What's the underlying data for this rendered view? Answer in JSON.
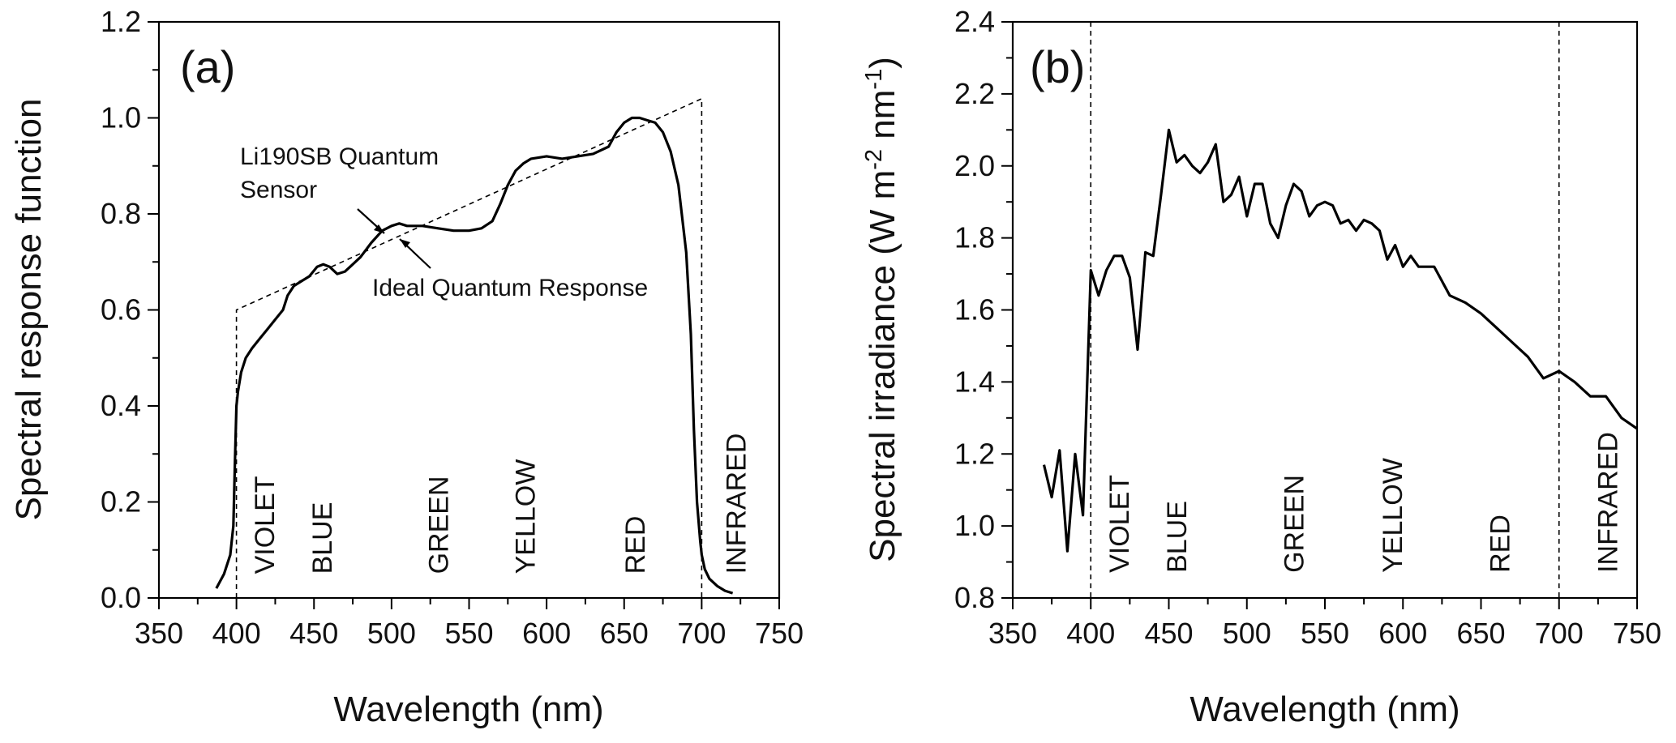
{
  "chart_data": [
    {
      "type": "line",
      "panel_label": "(a)",
      "xlabel": "Wavelength (nm)",
      "ylabel": "Spectral response function",
      "xlim": [
        350,
        750
      ],
      "ylim": [
        0.0,
        1.2
      ],
      "xticks": [
        "350",
        "400",
        "450",
        "500",
        "550",
        "600",
        "650",
        "700",
        "750"
      ],
      "yticks": [
        "0.0",
        "0.2",
        "0.4",
        "0.6",
        "0.8",
        "1.0",
        "1.2"
      ],
      "band_labels": [
        {
          "text": "VIOLET",
          "x": 418,
          "y": 0.05
        },
        {
          "text": "BLUE",
          "x": 455,
          "y": 0.05
        },
        {
          "text": "GREEN",
          "x": 530,
          "y": 0.05
        },
        {
          "text": "YELLOW",
          "x": 586,
          "y": 0.05
        },
        {
          "text": "RED",
          "x": 657,
          "y": 0.05
        },
        {
          "text": "INFRARED",
          "x": 722,
          "y": 0.05
        }
      ],
      "series": [
        {
          "name": "Li190SB Quantum Sensor",
          "x": [
            387,
            392,
            396,
            398,
            399,
            400,
            401,
            403,
            406,
            410,
            415,
            420,
            425,
            430,
            433,
            437,
            442,
            447,
            452,
            456,
            460,
            465,
            470,
            475,
            480,
            487,
            494,
            500,
            505,
            510,
            520,
            530,
            540,
            550,
            558,
            565,
            570,
            575,
            580,
            585,
            590,
            600,
            610,
            620,
            630,
            640,
            645,
            650,
            655,
            660,
            665,
            670,
            675,
            680,
            685,
            690,
            693,
            695,
            697,
            699,
            700,
            702,
            705,
            710,
            715,
            720
          ],
          "y": [
            0.02,
            0.05,
            0.09,
            0.15,
            0.28,
            0.4,
            0.43,
            0.47,
            0.5,
            0.52,
            0.54,
            0.56,
            0.58,
            0.6,
            0.63,
            0.65,
            0.66,
            0.67,
            0.69,
            0.695,
            0.69,
            0.675,
            0.68,
            0.695,
            0.71,
            0.74,
            0.765,
            0.775,
            0.78,
            0.775,
            0.775,
            0.77,
            0.765,
            0.765,
            0.77,
            0.785,
            0.82,
            0.86,
            0.89,
            0.905,
            0.915,
            0.92,
            0.915,
            0.92,
            0.925,
            0.94,
            0.97,
            0.99,
            1.0,
            1.0,
            0.995,
            0.99,
            0.97,
            0.93,
            0.86,
            0.72,
            0.55,
            0.35,
            0.2,
            0.12,
            0.09,
            0.06,
            0.04,
            0.025,
            0.015,
            0.01
          ]
        },
        {
          "name": "Ideal Quantum Response",
          "style": "dashed",
          "x": [
            400,
            400,
            700,
            700
          ],
          "y": [
            0.0,
            0.6,
            1.04,
            0.0
          ]
        }
      ],
      "annotations": [
        {
          "text_lines": [
            "Li190SB Quantum",
            "Sensor"
          ],
          "arrow_to": {
            "x": 497,
            "y": 0.765
          }
        },
        {
          "text_lines": [
            "Ideal Quantum Response"
          ],
          "arrow_to": {
            "x": 503,
            "y": 0.755
          }
        }
      ]
    },
    {
      "type": "line",
      "panel_label": "(b)",
      "xlabel": "Wavelength (nm)",
      "ylabel_parts": [
        "Spectral irradiance (W m",
        "-2",
        " nm",
        "-1",
        ")"
      ],
      "xlim": [
        350,
        750
      ],
      "ylim": [
        0.8,
        2.4
      ],
      "xticks": [
        "350",
        "400",
        "450",
        "500",
        "550",
        "600",
        "650",
        "700",
        "750"
      ],
      "yticks": [
        "0.8",
        "1.0",
        "1.2",
        "1.4",
        "1.6",
        "1.8",
        "2.0",
        "2.2",
        "2.4"
      ],
      "vlines": [
        400,
        700
      ],
      "band_labels": [
        {
          "text": "VIOLET",
          "x": 418,
          "y": 0.87
        },
        {
          "text": "BLUE",
          "x": 455,
          "y": 0.87
        },
        {
          "text": "GREEN",
          "x": 530,
          "y": 0.87
        },
        {
          "text": "YELLOW",
          "x": 593,
          "y": 0.87
        },
        {
          "text": "RED",
          "x": 662,
          "y": 0.87
        },
        {
          "text": "INFRARED",
          "x": 731,
          "y": 0.87
        }
      ],
      "series": [
        {
          "name": "Spectral irradiance",
          "x": [
            370,
            375,
            380,
            385,
            390,
            395,
            400,
            405,
            410,
            415,
            420,
            425,
            430,
            435,
            440,
            445,
            450,
            455,
            460,
            465,
            470,
            475,
            480,
            485,
            490,
            495,
            500,
            505,
            510,
            515,
            520,
            525,
            530,
            535,
            540,
            545,
            550,
            555,
            560,
            565,
            570,
            575,
            580,
            585,
            590,
            595,
            600,
            605,
            610,
            615,
            620,
            630,
            640,
            650,
            660,
            670,
            680,
            690,
            700,
            710,
            720,
            730,
            740,
            750
          ],
          "y": [
            1.17,
            1.08,
            1.21,
            0.93,
            1.2,
            1.03,
            1.71,
            1.64,
            1.71,
            1.75,
            1.75,
            1.69,
            1.49,
            1.76,
            1.75,
            1.92,
            2.1,
            2.01,
            2.03,
            2.0,
            1.98,
            2.01,
            2.06,
            1.9,
            1.92,
            1.97,
            1.86,
            1.95,
            1.95,
            1.84,
            1.8,
            1.89,
            1.95,
            1.93,
            1.86,
            1.89,
            1.9,
            1.89,
            1.84,
            1.85,
            1.82,
            1.85,
            1.84,
            1.82,
            1.74,
            1.78,
            1.72,
            1.75,
            1.72,
            1.72,
            1.72,
            1.64,
            1.62,
            1.59,
            1.55,
            1.51,
            1.47,
            1.41,
            1.43,
            1.4,
            1.36,
            1.36,
            1.3,
            1.27
          ]
        }
      ]
    }
  ]
}
